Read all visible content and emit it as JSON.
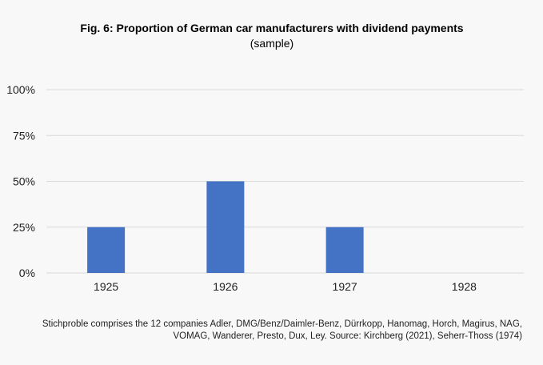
{
  "chart_data": {
    "type": "bar",
    "title": "Fig. 6: Proportion of German car manufacturers with dividend payments",
    "subtitle": "(sample)",
    "categories": [
      "1925",
      "1926",
      "1927",
      "1928"
    ],
    "values": [
      25,
      50,
      25,
      0
    ],
    "ylim": [
      0,
      100
    ],
    "yticks": [
      "0%",
      "25%",
      "50%",
      "75%",
      "100%"
    ],
    "ytick_values": [
      0,
      25,
      50,
      75,
      100
    ],
    "grid": true,
    "bar_color": "#4472c4",
    "note": "Stichproble comprises the 12 companies Adler, DMG/Benz/Daimler-Benz, Dürrkopp, Hanomag, Horch, Magirus, NAG, VOMAG, Wanderer, Presto, Dux, Ley. Source: Kirchberg (2021), Seherr-Thoss (1974)"
  }
}
